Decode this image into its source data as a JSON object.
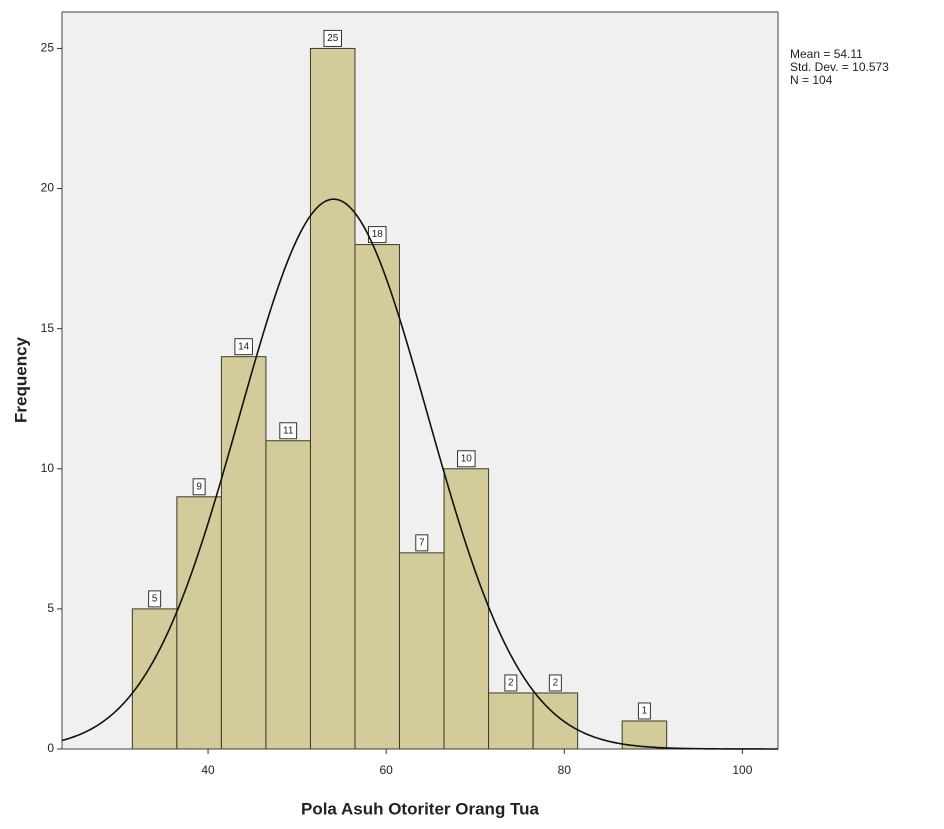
{
  "chart_data": {
    "type": "histogram",
    "x_label": "Pola Asuh Otoriter Orang Tua",
    "y_label": "Frequency",
    "bins": [
      31.5,
      36.5,
      41.5,
      46.5,
      51.5,
      56.5,
      61.5,
      66.5,
      71.5,
      76.5,
      81.5,
      86.5,
      91.5
    ],
    "values": [
      5,
      9,
      14,
      11,
      25,
      18,
      7,
      10,
      2,
      2,
      0,
      1
    ],
    "color": "#d3cc9a",
    "xlim": [
      23.6,
      104
    ],
    "xticks": [
      40,
      60,
      80,
      100
    ],
    "ylim": [
      0,
      26.3
    ],
    "yticks": [
      0,
      5,
      10,
      15,
      20,
      25
    ],
    "grid": false,
    "stats": [
      {
        "value": 54.11,
        "label": "Mean = 54.11"
      },
      {
        "value": 10.573,
        "label": "Std. Dev. = 10.573"
      },
      {
        "value": 104,
        "label": "N = 104"
      }
    ]
  }
}
